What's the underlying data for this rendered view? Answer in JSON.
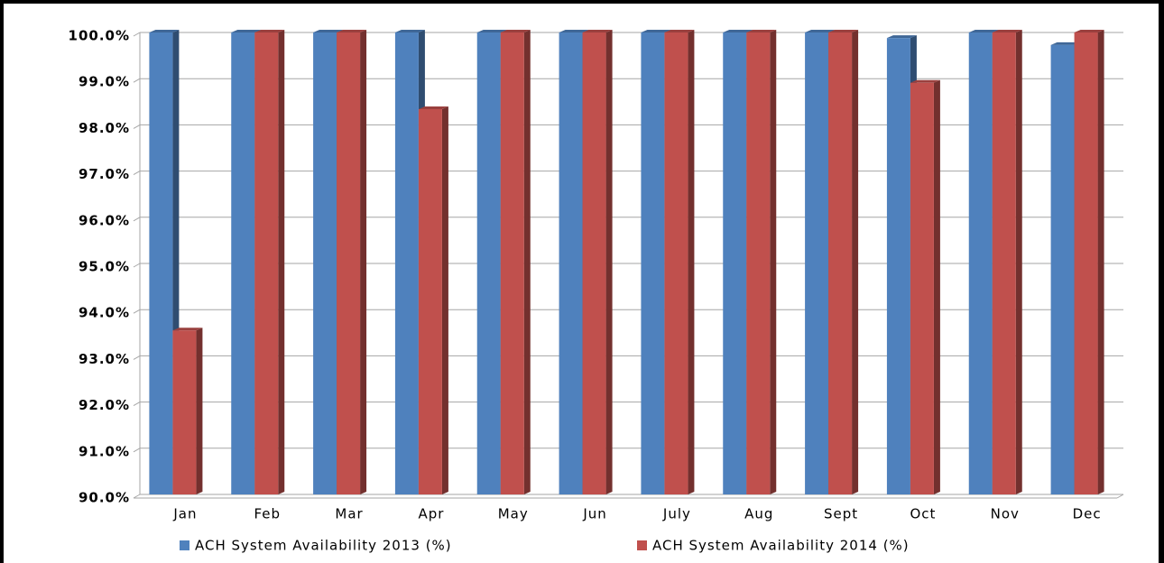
{
  "chart_data": {
    "type": "bar3d",
    "categories": [
      "Jan",
      "Feb",
      "Mar",
      "Apr",
      "May",
      "Jun",
      "July",
      "Aug",
      "Sept",
      "Oct",
      "Nov",
      "Dec"
    ],
    "series": [
      {
        "name": "ACH System Availability 2013 (%)",
        "color": "#4f81bd",
        "values": [
          100,
          100,
          100,
          100,
          100,
          100,
          100,
          100,
          100,
          99.88,
          100,
          99.73
        ]
      },
      {
        "name": "ACH System Availability 2014 (%)",
        "color": "#c0504d",
        "values": [
          93.55,
          100,
          100,
          98.34,
          100,
          100,
          100,
          100,
          100,
          98.91,
          100,
          100
        ]
      }
    ],
    "ylim": [
      90,
      100
    ],
    "yticks": [
      {
        "value": 90,
        "label": "90.0%"
      },
      {
        "value": 91,
        "label": "91.0%"
      },
      {
        "value": 92,
        "label": "92.0%"
      },
      {
        "value": 93,
        "label": "93.0%"
      },
      {
        "value": 94,
        "label": "94.0%"
      },
      {
        "value": 95,
        "label": "95.0%"
      },
      {
        "value": 96,
        "label": "96.0%"
      },
      {
        "value": 97,
        "label": "97.0%"
      },
      {
        "value": 98,
        "label": "98.0%"
      },
      {
        "value": 99,
        "label": "99.0%"
      },
      {
        "value": 100,
        "label": "100.0%"
      }
    ],
    "grid": true,
    "legend": "bottom"
  }
}
